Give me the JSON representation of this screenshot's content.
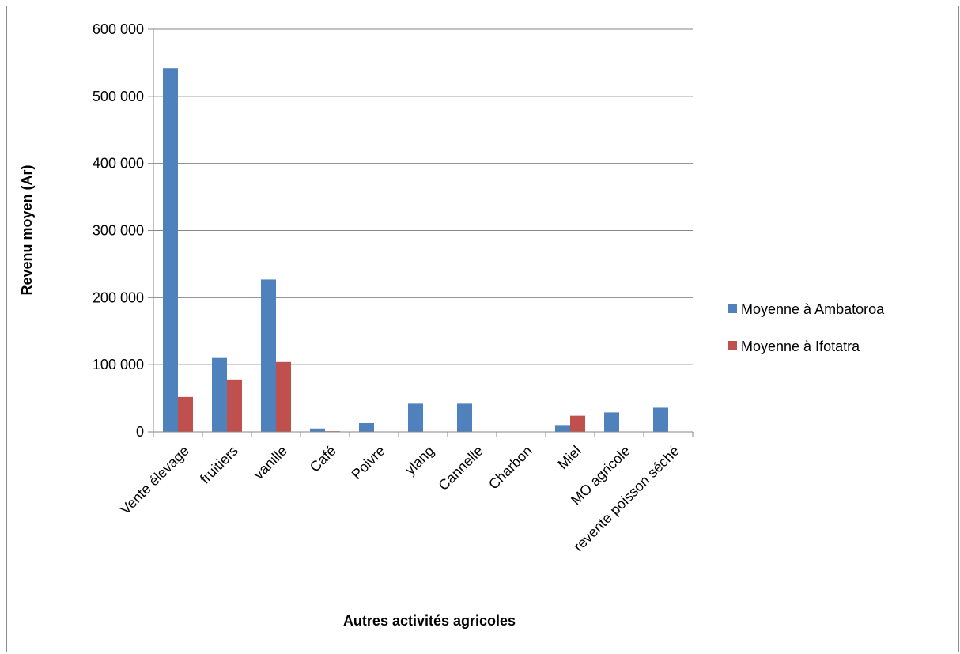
{
  "chart_data": {
    "type": "bar",
    "title": "",
    "xlabel": "Autres activités agricoles",
    "ylabel": "Revenu moyen (Ar)",
    "ylim": [
      0,
      600000
    ],
    "yticks": [
      0,
      100000,
      200000,
      300000,
      400000,
      500000,
      600000
    ],
    "ytick_labels": [
      "0",
      "100 000",
      "200 000",
      "300 000",
      "400 000",
      "500 000",
      "600 000"
    ],
    "grid": true,
    "legend_position": "right",
    "categories": [
      "Vente élevage",
      "fruitiers",
      "vanille",
      "Café",
      "Poivre",
      "ylang",
      "Cannelle",
      "Charbon",
      "Miel",
      "MO agricole",
      "revente poisson séché"
    ],
    "series": [
      {
        "name": "Moyenne à Ambatoroa",
        "color": "#4f81bd",
        "values": [
          542000,
          110000,
          227000,
          5000,
          13000,
          42000,
          42000,
          0,
          9000,
          29000,
          36000
        ]
      },
      {
        "name": "Moyenne à Ifotatra",
        "color": "#c0504d",
        "values": [
          52000,
          78000,
          104000,
          1000,
          0,
          0,
          0,
          0,
          24000,
          0,
          0
        ]
      }
    ]
  }
}
